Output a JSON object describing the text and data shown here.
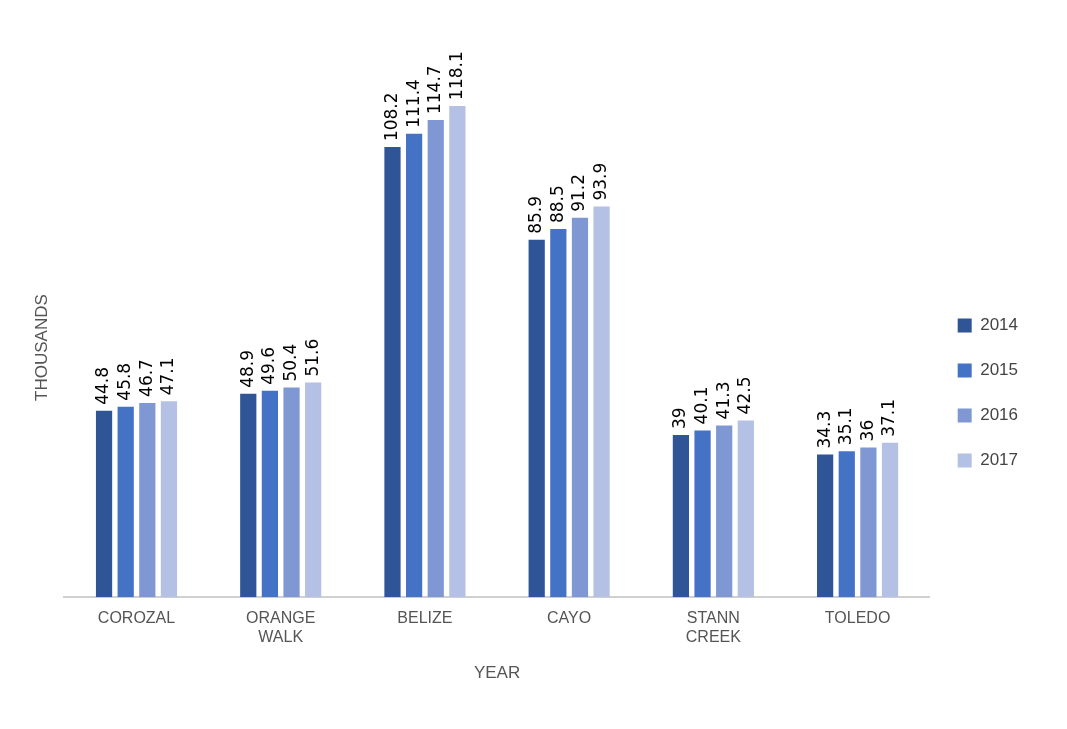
{
  "chart_data": {
    "type": "bar",
    "xlabel": "YEAR",
    "ylabel": "THOUSANDS",
    "categories": [
      "COROZAL",
      "ORANGE WALK",
      "BELIZE",
      "CAYO",
      "STANN CREEK",
      "TOLEDO"
    ],
    "series": [
      {
        "name": "2014",
        "color": "#2f5597",
        "values": [
          44.8,
          48.9,
          108.2,
          85.9,
          39,
          34.3
        ]
      },
      {
        "name": "2015",
        "color": "#4472c4",
        "values": [
          45.8,
          49.6,
          111.4,
          88.5,
          40.1,
          35.1
        ]
      },
      {
        "name": "2016",
        "color": "#7f98d4",
        "values": [
          46.7,
          50.4,
          114.7,
          91.2,
          41.3,
          36
        ]
      },
      {
        "name": "2017",
        "color": "#b4c0e4",
        "values": [
          47.1,
          51.6,
          118.1,
          93.9,
          42.5,
          37.1
        ]
      }
    ],
    "data_labels": true,
    "legend": "right",
    "grid": false
  }
}
